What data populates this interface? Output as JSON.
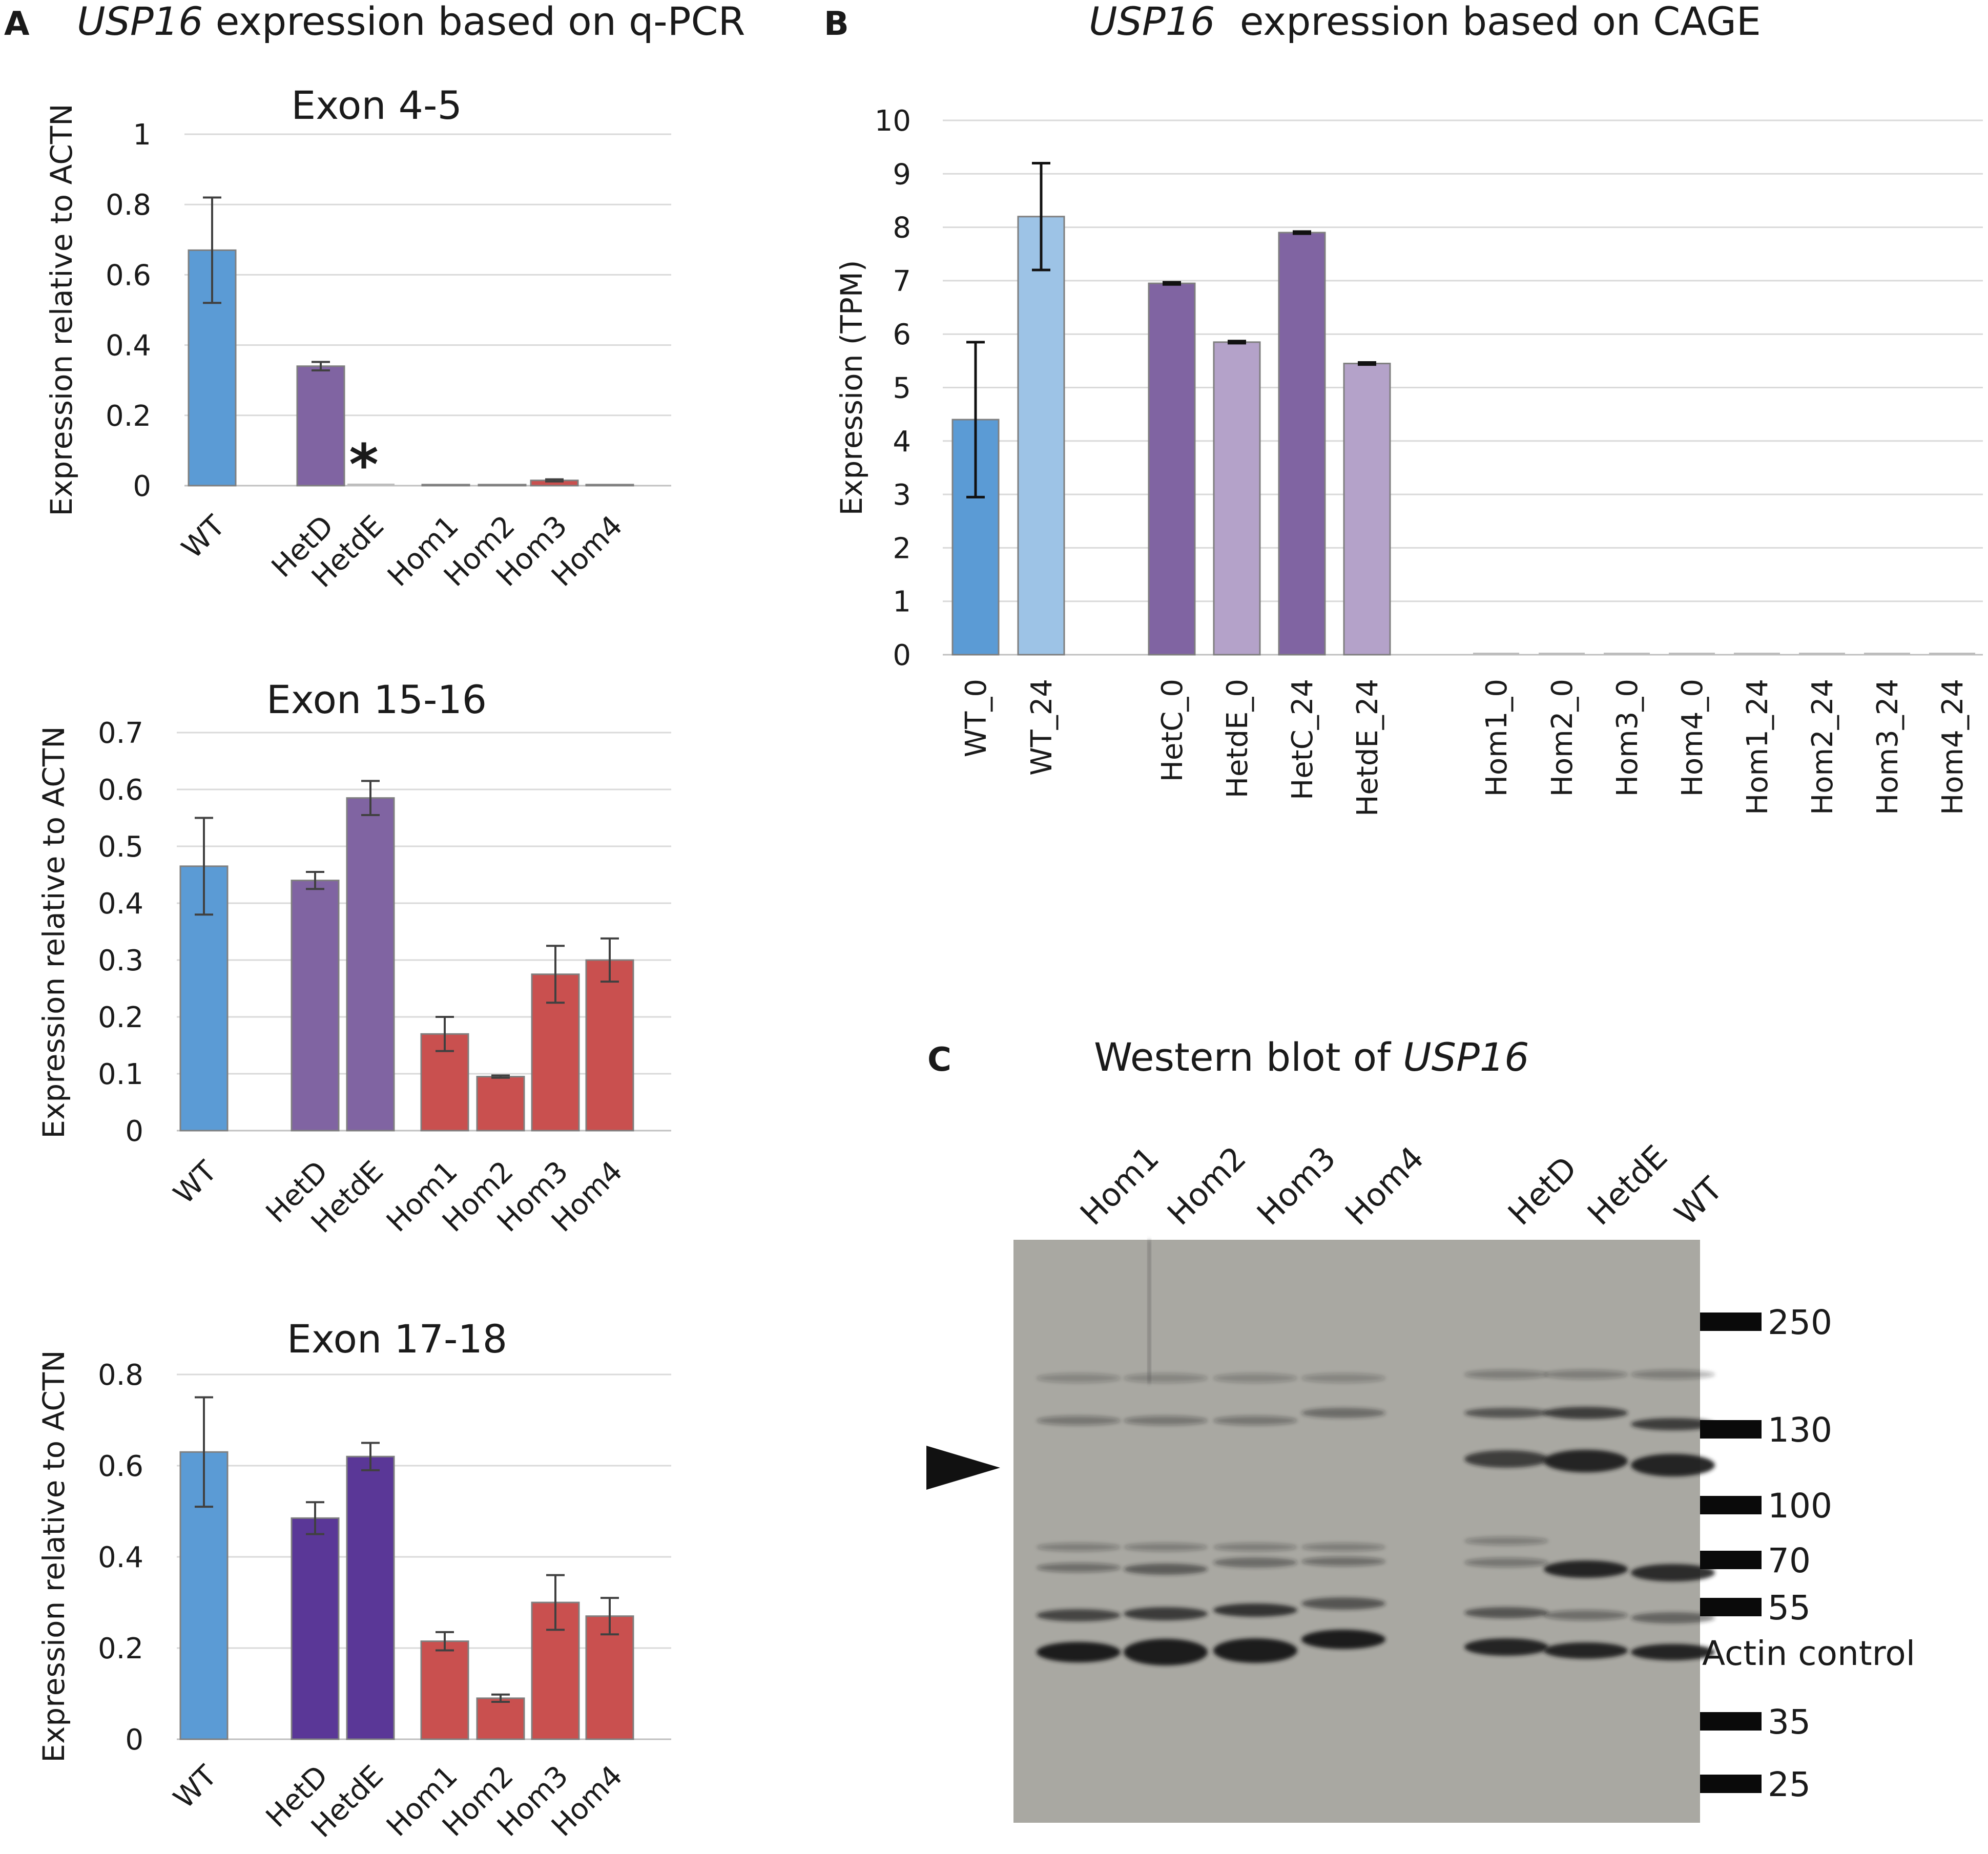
{
  "panel_a": {
    "letter": "A",
    "title_gene": "USP16",
    "title_rest": " expression based on q-PCR",
    "star": "*"
  },
  "panel_b": {
    "letter": "B",
    "title_gene": "USP16",
    "title_rest": "  expression based on CAGE"
  },
  "panel_c": {
    "letter": "C",
    "title_prefix": "Western blot of ",
    "title_gene": "USP16",
    "lanes": [
      "Hom1",
      "Hom2",
      "Hom3",
      "Hom4",
      "HetD",
      "HetdE",
      "WT"
    ],
    "markers": [
      "250",
      "130",
      "100",
      "70",
      "55",
      "Actin control",
      "35",
      "25"
    ]
  },
  "colors": {
    "wt": "#5b9bd5",
    "wt_light": "#9dc3e6",
    "het": "#8064a2",
    "het_light": "#b4a2c9",
    "het_dark": "#5a3797",
    "hom": "#c9504f",
    "blot_bg": "#a9a8a2",
    "band": "#1e1e1e"
  },
  "chart_data": [
    {
      "id": "exon45",
      "type": "bar",
      "title": "Exon 4-5",
      "ylabel": "Expression relative to ACTN",
      "ylim": [
        0,
        1
      ],
      "yticks": [
        "0",
        "0.2",
        "0.4",
        "0.6",
        "0.8",
        "1"
      ],
      "categories": [
        "WT",
        "HetD",
        "HetdE",
        "Hom1",
        "Hom2",
        "Hom3",
        "Hom4"
      ],
      "values": [
        0.67,
        0.34,
        0.0,
        0.003,
        0.003,
        0.015,
        0.003
      ],
      "errors": [
        0.15,
        0.012,
        0.0,
        0.0,
        0.0,
        0.003,
        0.0
      ],
      "color_keys": [
        "wt",
        "het",
        "het",
        "hom",
        "hom",
        "hom",
        "hom"
      ],
      "grid": true
    },
    {
      "id": "exon1516",
      "type": "bar",
      "title": "Exon 15-16",
      "ylabel": "Expression relative to ACTN",
      "ylim": [
        0,
        0.7
      ],
      "yticks": [
        "0",
        "0.1",
        "0.2",
        "0.3",
        "0.4",
        "0.5",
        "0.6",
        "0.7"
      ],
      "categories": [
        "WT",
        "HetD",
        "HetdE",
        "Hom1",
        "Hom2",
        "Hom3",
        "Hom4"
      ],
      "values": [
        0.465,
        0.44,
        0.585,
        0.17,
        0.095,
        0.275,
        0.3
      ],
      "errors": [
        0.085,
        0.015,
        0.03,
        0.03,
        0.002,
        0.05,
        0.038
      ],
      "color_keys": [
        "wt",
        "het",
        "het",
        "hom",
        "hom",
        "hom",
        "hom"
      ],
      "grid": true
    },
    {
      "id": "exon1718",
      "type": "bar",
      "title": "Exon 17-18",
      "ylabel": "Expression relative to ACTN",
      "ylim": [
        0,
        0.8
      ],
      "yticks": [
        "0",
        "0.2",
        "0.4",
        "0.6",
        "0.8"
      ],
      "categories": [
        "WT",
        "HetD",
        "HetdE",
        "Hom1",
        "Hom2",
        "Hom3",
        "Hom4"
      ],
      "values": [
        0.63,
        0.485,
        0.62,
        0.215,
        0.09,
        0.3,
        0.27
      ],
      "errors": [
        0.12,
        0.035,
        0.03,
        0.02,
        0.008,
        0.06,
        0.04
      ],
      "color_keys": [
        "wt",
        "het_dark",
        "het_dark",
        "hom",
        "hom",
        "hom",
        "hom"
      ],
      "grid": true
    },
    {
      "id": "cage",
      "type": "bar",
      "title": "",
      "ylabel": "Expression (TPM)",
      "ylim": [
        0,
        10
      ],
      "yticks": [
        "0",
        "1",
        "2",
        "3",
        "4",
        "5",
        "6",
        "7",
        "8",
        "9",
        "10"
      ],
      "categories": [
        "WT_0",
        "WT_24",
        "HetC_0",
        "HetdE_0",
        "HetC_24",
        "HetdE_24",
        "Hom1_0",
        "Hom2_0",
        "Hom3_0",
        "Hom4_0",
        "Hom1_24",
        "Hom2_24",
        "Hom3_24",
        "Hom4_24"
      ],
      "values": [
        4.4,
        8.2,
        6.95,
        5.85,
        7.9,
        5.45,
        0,
        0,
        0,
        0,
        0,
        0,
        0,
        0
      ],
      "errors": [
        1.45,
        1.0,
        0.02,
        0.02,
        0.02,
        0.02,
        0,
        0,
        0,
        0,
        0,
        0,
        0,
        0
      ],
      "color_keys": [
        "wt",
        "wt_light",
        "het",
        "het_light",
        "het",
        "het_light",
        "hom",
        "hom",
        "hom",
        "hom",
        "hom",
        "hom",
        "hom",
        "hom"
      ],
      "grid": true
    }
  ]
}
